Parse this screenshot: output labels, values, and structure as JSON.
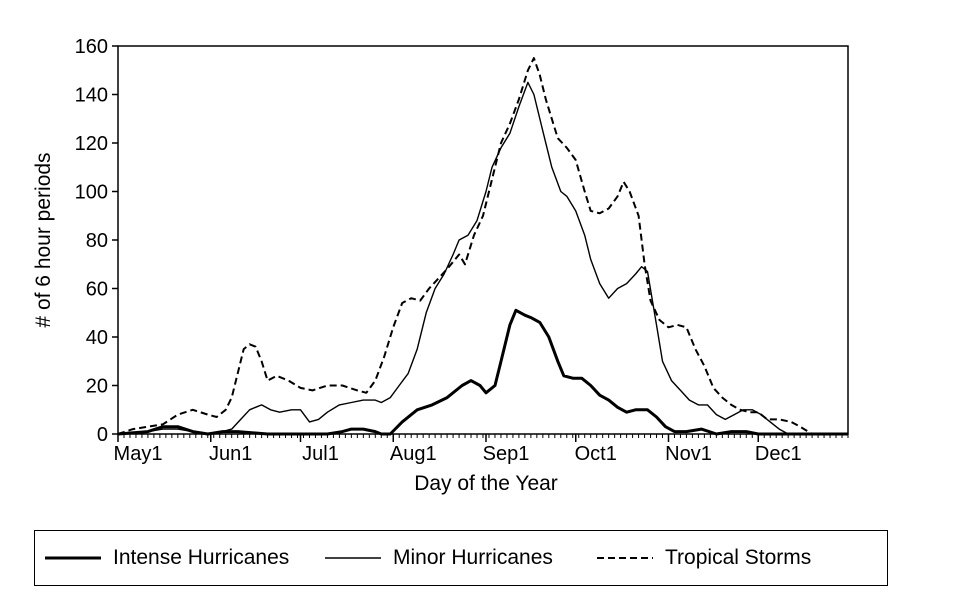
{
  "chart_data": {
    "type": "line",
    "xlabel": "Day of the Year",
    "ylabel": "# of 6 hour periods",
    "ylim": [
      0,
      160
    ],
    "yticks": [
      0,
      20,
      40,
      60,
      80,
      100,
      120,
      140,
      160
    ],
    "xlim": [
      0,
      244
    ],
    "xticks": [
      {
        "label": "May1",
        "day": 0
      },
      {
        "label": "Jun1",
        "day": 31
      },
      {
        "label": "Jul1",
        "day": 61
      },
      {
        "label": "Aug1",
        "day": 92
      },
      {
        "label": "Sep1",
        "day": 123
      },
      {
        "label": "Oct1",
        "day": 153
      },
      {
        "label": "Nov1",
        "day": 184
      },
      {
        "label": "Dec1",
        "day": 214
      }
    ],
    "grid": false,
    "legend_position": "bottom",
    "series": [
      {
        "name": "Intense Hurricanes",
        "style": "thick-solid",
        "points": [
          [
            0,
            0
          ],
          [
            10,
            1
          ],
          [
            15,
            3
          ],
          [
            20,
            3
          ],
          [
            25,
            1
          ],
          [
            30,
            0
          ],
          [
            35,
            1
          ],
          [
            40,
            1
          ],
          [
            50,
            0
          ],
          [
            60,
            0
          ],
          [
            70,
            0
          ],
          [
            75,
            1
          ],
          [
            78,
            2
          ],
          [
            82,
            2
          ],
          [
            86,
            1
          ],
          [
            88,
            0
          ],
          [
            91,
            0
          ],
          [
            95,
            5
          ],
          [
            100,
            10
          ],
          [
            105,
            12
          ],
          [
            110,
            15
          ],
          [
            115,
            20
          ],
          [
            118,
            22
          ],
          [
            121,
            20
          ],
          [
            123,
            17
          ],
          [
            126,
            20
          ],
          [
            128,
            30
          ],
          [
            131,
            45
          ],
          [
            133,
            51
          ],
          [
            136,
            49
          ],
          [
            138,
            48
          ],
          [
            141,
            46
          ],
          [
            144,
            40
          ],
          [
            147,
            30
          ],
          [
            149,
            24
          ],
          [
            152,
            23
          ],
          [
            155,
            23
          ],
          [
            158,
            20
          ],
          [
            161,
            16
          ],
          [
            164,
            14
          ],
          [
            167,
            11
          ],
          [
            170,
            9
          ],
          [
            173,
            10
          ],
          [
            177,
            10
          ],
          [
            180,
            7
          ],
          [
            183,
            3
          ],
          [
            186,
            1
          ],
          [
            190,
            1
          ],
          [
            195,
            2
          ],
          [
            200,
            0
          ],
          [
            205,
            1
          ],
          [
            210,
            1
          ],
          [
            214,
            0
          ],
          [
            244,
            0
          ]
        ]
      },
      {
        "name": "Minor Hurricanes",
        "style": "thin-solid",
        "points": [
          [
            0,
            0
          ],
          [
            10,
            1
          ],
          [
            15,
            2
          ],
          [
            20,
            2
          ],
          [
            25,
            1
          ],
          [
            30,
            0
          ],
          [
            35,
            1
          ],
          [
            38,
            2
          ],
          [
            41,
            6
          ],
          [
            44,
            10
          ],
          [
            46,
            11
          ],
          [
            48,
            12
          ],
          [
            51,
            10
          ],
          [
            54,
            9
          ],
          [
            58,
            10
          ],
          [
            61,
            10
          ],
          [
            64,
            5
          ],
          [
            67,
            6
          ],
          [
            70,
            9
          ],
          [
            74,
            12
          ],
          [
            78,
            13
          ],
          [
            82,
            14
          ],
          [
            86,
            14
          ],
          [
            88,
            13
          ],
          [
            91,
            15
          ],
          [
            94,
            20
          ],
          [
            97,
            25
          ],
          [
            100,
            35
          ],
          [
            103,
            50
          ],
          [
            106,
            60
          ],
          [
            109,
            66
          ],
          [
            112,
            74
          ],
          [
            114,
            80
          ],
          [
            117,
            82
          ],
          [
            120,
            88
          ],
          [
            123,
            100
          ],
          [
            125,
            110
          ],
          [
            128,
            118
          ],
          [
            131,
            124
          ],
          [
            134,
            135
          ],
          [
            137,
            145
          ],
          [
            139,
            140
          ],
          [
            142,
            125
          ],
          [
            145,
            110
          ],
          [
            148,
            100
          ],
          [
            150,
            98
          ],
          [
            153,
            92
          ],
          [
            156,
            82
          ],
          [
            158,
            72
          ],
          [
            161,
            62
          ],
          [
            164,
            56
          ],
          [
            167,
            60
          ],
          [
            170,
            62
          ],
          [
            173,
            66
          ],
          [
            175,
            69
          ],
          [
            177,
            67
          ],
          [
            180,
            45
          ],
          [
            182,
            30
          ],
          [
            185,
            22
          ],
          [
            188,
            18
          ],
          [
            191,
            14
          ],
          [
            194,
            12
          ],
          [
            197,
            12
          ],
          [
            200,
            8
          ],
          [
            203,
            6
          ],
          [
            206,
            8
          ],
          [
            209,
            10
          ],
          [
            212,
            10
          ],
          [
            215,
            8
          ],
          [
            218,
            5
          ],
          [
            221,
            2
          ],
          [
            224,
            0
          ],
          [
            244,
            0
          ]
        ]
      },
      {
        "name": "Tropical Storms",
        "style": "dashed",
        "points": [
          [
            0,
            0
          ],
          [
            5,
            2
          ],
          [
            10,
            3
          ],
          [
            15,
            4
          ],
          [
            20,
            8
          ],
          [
            25,
            10
          ],
          [
            30,
            8
          ],
          [
            33,
            7
          ],
          [
            36,
            10
          ],
          [
            38,
            15
          ],
          [
            40,
            25
          ],
          [
            42,
            35
          ],
          [
            44,
            37
          ],
          [
            46,
            36
          ],
          [
            48,
            30
          ],
          [
            50,
            22
          ],
          [
            53,
            24
          ],
          [
            57,
            22
          ],
          [
            61,
            19
          ],
          [
            65,
            18
          ],
          [
            70,
            20
          ],
          [
            75,
            20
          ],
          [
            80,
            18
          ],
          [
            83,
            17
          ],
          [
            86,
            22
          ],
          [
            89,
            32
          ],
          [
            92,
            44
          ],
          [
            95,
            54
          ],
          [
            98,
            56
          ],
          [
            101,
            55
          ],
          [
            104,
            60
          ],
          [
            107,
            64
          ],
          [
            110,
            68
          ],
          [
            114,
            74
          ],
          [
            116,
            70
          ],
          [
            119,
            82
          ],
          [
            122,
            90
          ],
          [
            125,
            105
          ],
          [
            128,
            120
          ],
          [
            131,
            128
          ],
          [
            134,
            138
          ],
          [
            137,
            150
          ],
          [
            139,
            155
          ],
          [
            141,
            148
          ],
          [
            143,
            138
          ],
          [
            145,
            130
          ],
          [
            147,
            122
          ],
          [
            150,
            118
          ],
          [
            153,
            113
          ],
          [
            156,
            100
          ],
          [
            158,
            92
          ],
          [
            161,
            91
          ],
          [
            164,
            93
          ],
          [
            167,
            98
          ],
          [
            169,
            104
          ],
          [
            171,
            100
          ],
          [
            174,
            90
          ],
          [
            176,
            70
          ],
          [
            178,
            55
          ],
          [
            181,
            47
          ],
          [
            184,
            44
          ],
          [
            187,
            45
          ],
          [
            190,
            44
          ],
          [
            193,
            35
          ],
          [
            196,
            28
          ],
          [
            199,
            19
          ],
          [
            202,
            15
          ],
          [
            205,
            12
          ],
          [
            208,
            10
          ],
          [
            211,
            9
          ],
          [
            214,
            9
          ],
          [
            217,
            6
          ],
          [
            221,
            6
          ],
          [
            225,
            5
          ],
          [
            228,
            3
          ],
          [
            232,
            0
          ],
          [
            244,
            0
          ]
        ]
      }
    ]
  }
}
